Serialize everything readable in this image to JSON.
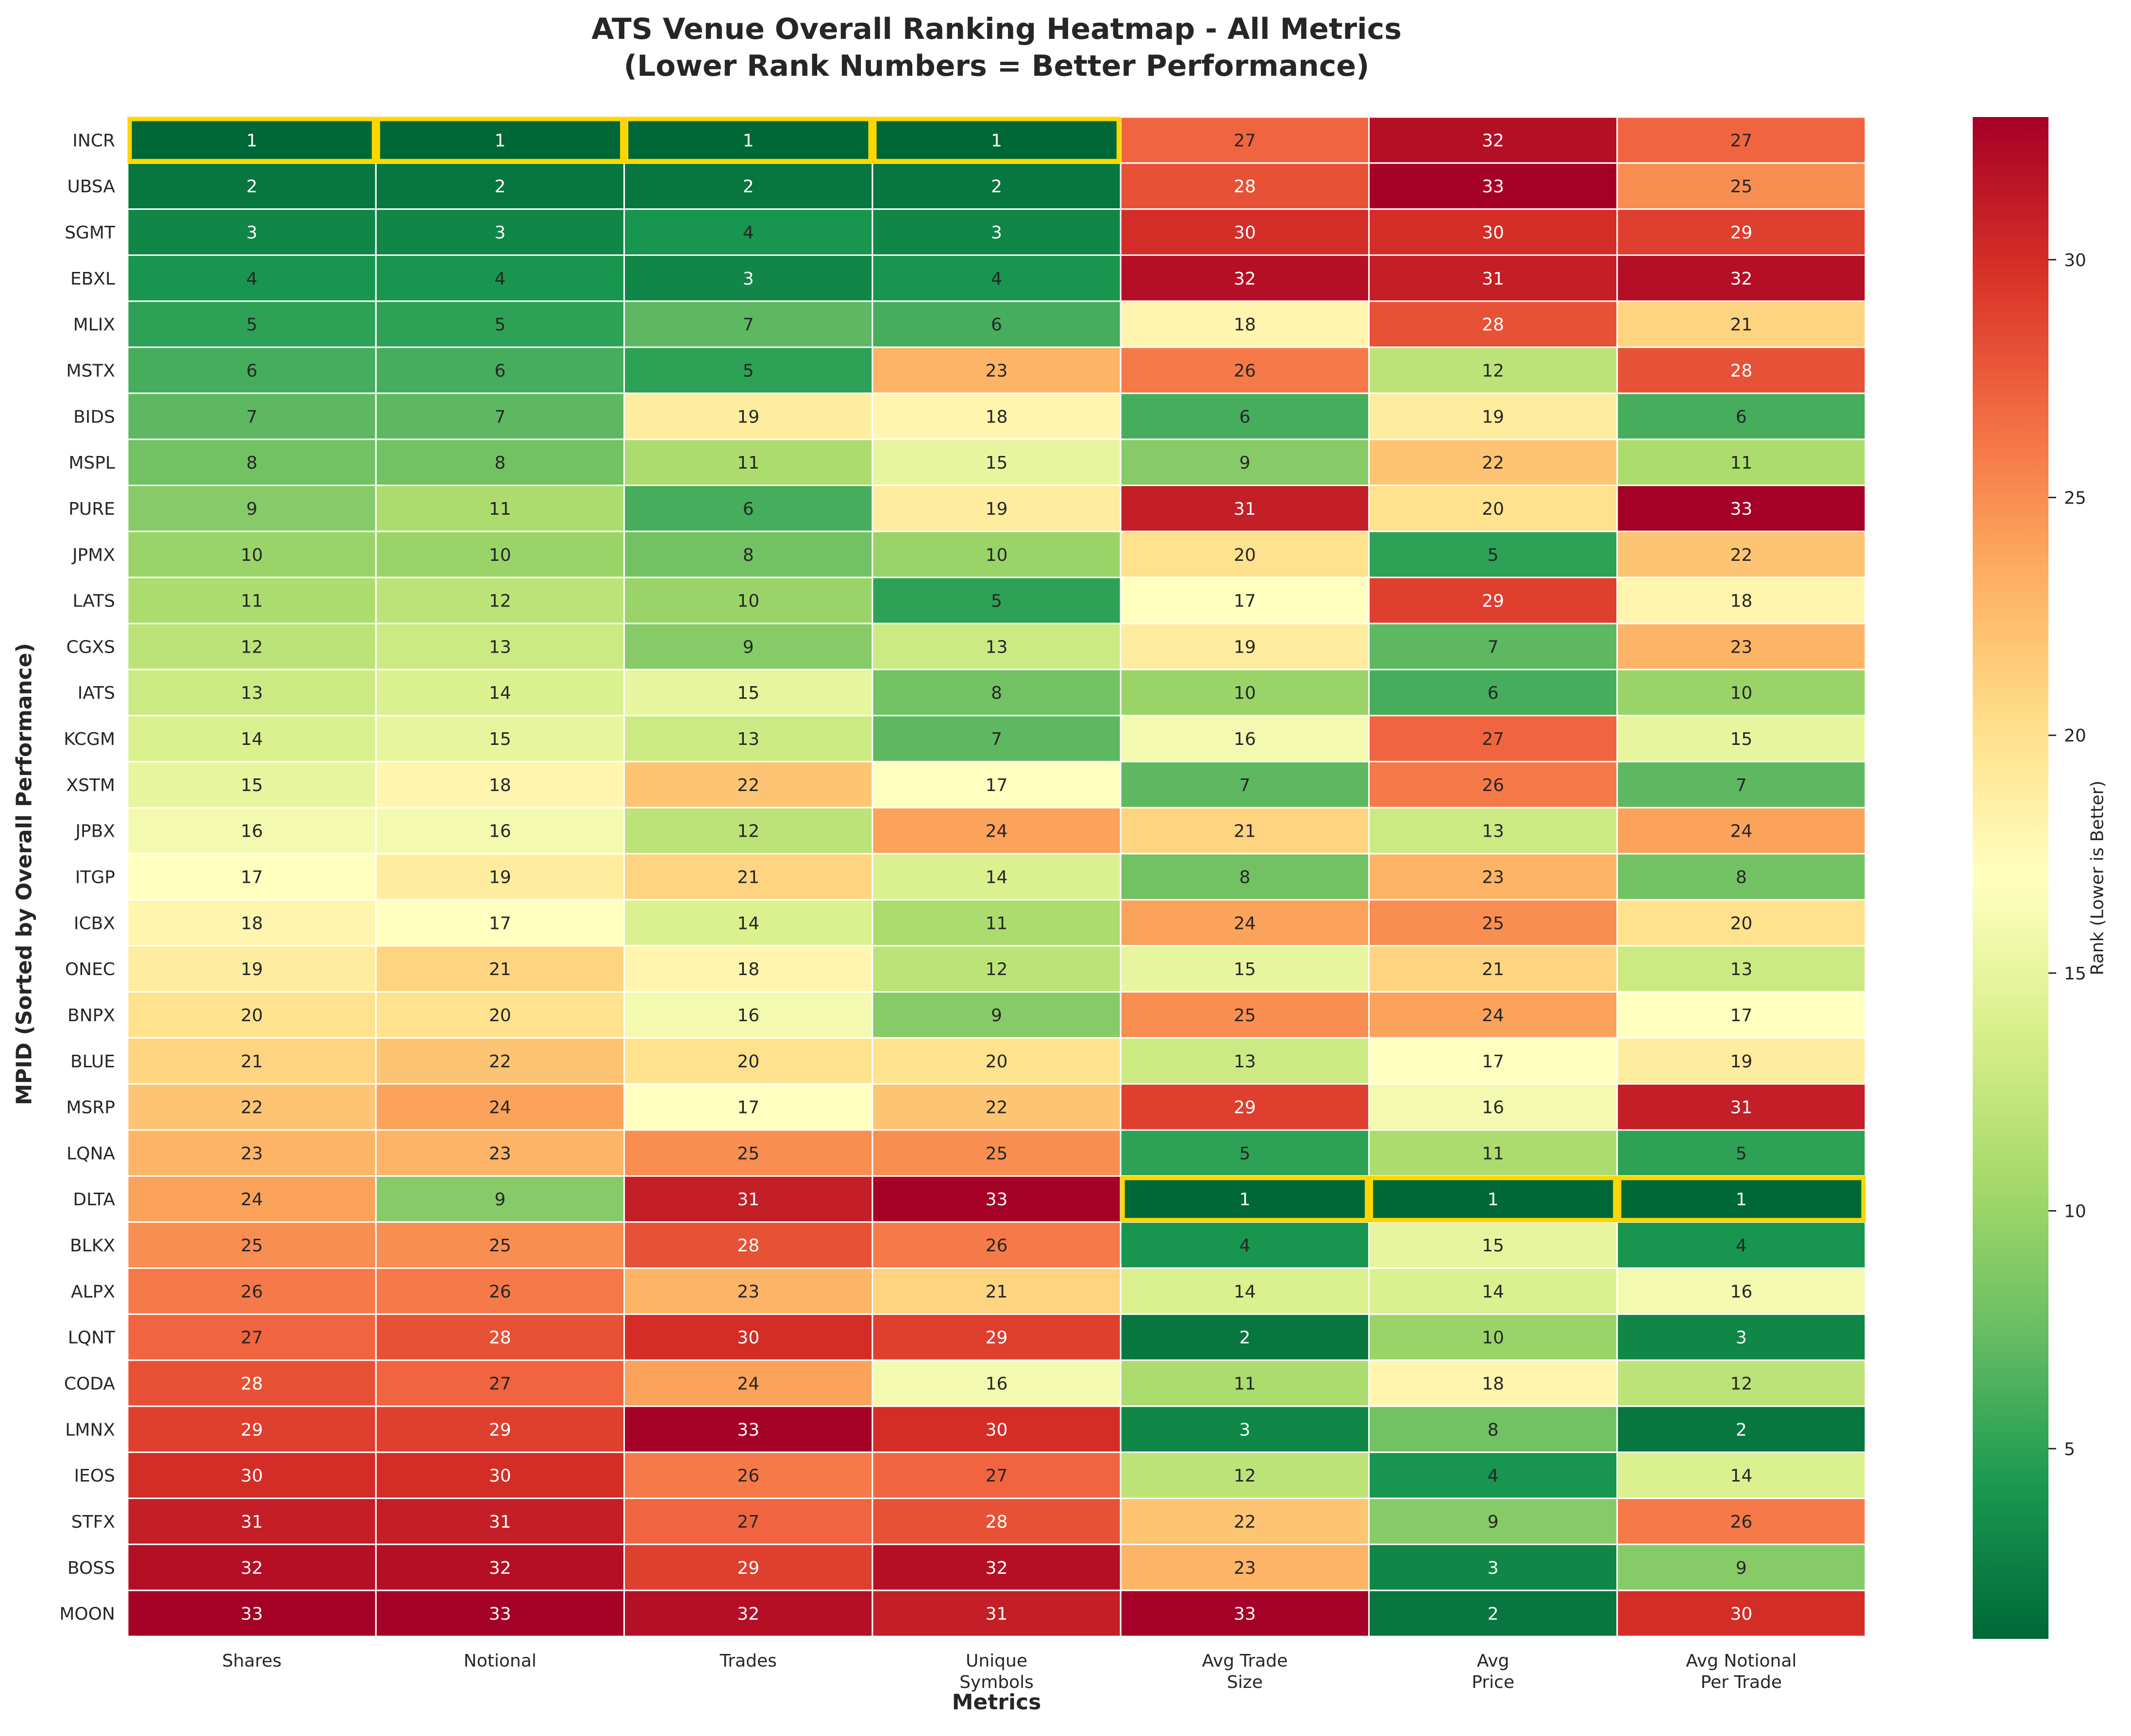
{
  "chart_data": {
    "type": "heatmap",
    "title": "ATS Venue Overall Ranking Heatmap - All Metrics\n(Lower Rank Numbers = Better Performance)",
    "xlabel": "Metrics",
    "ylabel": "MPID (Sorted by Overall Performance)",
    "columns": [
      "Shares",
      "Notional",
      "Trades",
      "Unique\nSymbols",
      "Avg Trade\nSize",
      "Avg\nPrice",
      "Avg Notional\nPer Trade"
    ],
    "rows": [
      "INCR",
      "UBSA",
      "SGMT",
      "EBXL",
      "MLIX",
      "MSTX",
      "BIDS",
      "MSPL",
      "PURE",
      "JPMX",
      "LATS",
      "CGXS",
      "IATS",
      "KCGM",
      "XSTM",
      "JPBX",
      "ITGP",
      "ICBX",
      "ONEC",
      "BNPX",
      "BLUE",
      "MSRP",
      "LQNA",
      "DLTA",
      "BLKX",
      "ALPX",
      "LQNT",
      "CODA",
      "LMNX",
      "IEOS",
      "STFX",
      "BOSS",
      "MOON"
    ],
    "values": [
      [
        1,
        1,
        1,
        1,
        27,
        32,
        27
      ],
      [
        2,
        2,
        2,
        2,
        28,
        33,
        25
      ],
      [
        3,
        3,
        4,
        3,
        30,
        30,
        29
      ],
      [
        4,
        4,
        3,
        4,
        32,
        31,
        32
      ],
      [
        5,
        5,
        7,
        6,
        18,
        28,
        21
      ],
      [
        6,
        6,
        5,
        23,
        26,
        12,
        28
      ],
      [
        7,
        7,
        19,
        18,
        6,
        19,
        6
      ],
      [
        8,
        8,
        11,
        15,
        9,
        22,
        11
      ],
      [
        9,
        11,
        6,
        19,
        31,
        20,
        33
      ],
      [
        10,
        10,
        8,
        10,
        20,
        5,
        22
      ],
      [
        11,
        12,
        10,
        5,
        17,
        29,
        18
      ],
      [
        12,
        13,
        9,
        13,
        19,
        7,
        23
      ],
      [
        13,
        14,
        15,
        8,
        10,
        6,
        10
      ],
      [
        14,
        15,
        13,
        7,
        16,
        27,
        15
      ],
      [
        15,
        18,
        22,
        17,
        7,
        26,
        7
      ],
      [
        16,
        16,
        12,
        24,
        21,
        13,
        24
      ],
      [
        17,
        19,
        21,
        14,
        8,
        23,
        8
      ],
      [
        18,
        17,
        14,
        11,
        24,
        25,
        20
      ],
      [
        19,
        21,
        18,
        12,
        15,
        21,
        13
      ],
      [
        20,
        20,
        16,
        9,
        25,
        24,
        17
      ],
      [
        21,
        22,
        20,
        20,
        13,
        17,
        19
      ],
      [
        22,
        24,
        17,
        22,
        29,
        16,
        31
      ],
      [
        23,
        23,
        25,
        25,
        5,
        11,
        5
      ],
      [
        24,
        9,
        31,
        33,
        1,
        1,
        1
      ],
      [
        25,
        25,
        28,
        26,
        4,
        15,
        4
      ],
      [
        26,
        26,
        23,
        21,
        14,
        14,
        16
      ],
      [
        27,
        28,
        30,
        29,
        2,
        10,
        3
      ],
      [
        28,
        27,
        24,
        16,
        11,
        18,
        12
      ],
      [
        29,
        29,
        33,
        30,
        3,
        8,
        2
      ],
      [
        30,
        30,
        26,
        27,
        12,
        4,
        14
      ],
      [
        31,
        31,
        27,
        28,
        22,
        9,
        26
      ],
      [
        32,
        32,
        29,
        32,
        23,
        3,
        9
      ],
      [
        33,
        33,
        32,
        31,
        33,
        2,
        30
      ]
    ],
    "colormap": "RdYlGn_r",
    "vmin": 1,
    "vmax": 33,
    "highlight": "rank 1 cells outlined",
    "highlight_color": "#ffd700",
    "colorbar": {
      "label": "Rank (Lower is Better)",
      "ticks": [
        5,
        10,
        15,
        20,
        25,
        30
      ]
    }
  }
}
